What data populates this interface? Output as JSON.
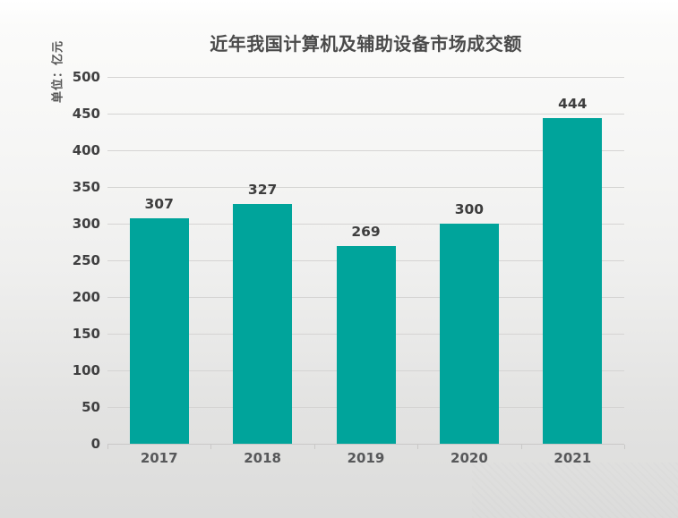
{
  "chart_data": {
    "type": "bar",
    "title": "近年我国计算机及辅助设备市场成交额",
    "ylabel": "单位：亿元",
    "xlabel": "",
    "categories": [
      "2017",
      "2018",
      "2019",
      "2020",
      "2021"
    ],
    "values": [
      307,
      327,
      269,
      300,
      444
    ],
    "ylim": [
      0,
      500
    ],
    "ytick_step": 50,
    "yticks": [
      0,
      50,
      100,
      150,
      200,
      250,
      300,
      350,
      400,
      450,
      500
    ],
    "grid": true,
    "legend_position": "none",
    "bar_color": "#00a49b",
    "colors": {
      "title": "#4a4a4a",
      "tick_label": "#3f3f40",
      "value_label": "#3e3e3e",
      "category_label": "#57585a",
      "grid_line": "#d5d4d3",
      "axis_line": "#c9c8c7",
      "background_top": "#ffffff",
      "background_bottom": "#dcdcdb"
    }
  }
}
